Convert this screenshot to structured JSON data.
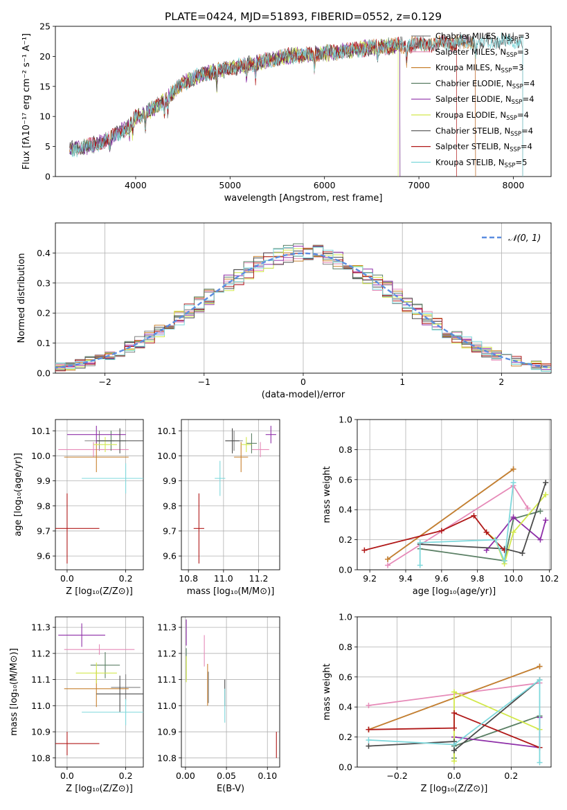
{
  "figure": {
    "title": "PLATE=0424, MJD=51893, FIBERID=0552, z=0.129"
  },
  "colors": {
    "chabrier_miles": "#808080",
    "salpeter_miles": "#e68ab8",
    "kroupa_miles": "#c8802e",
    "chabrier_elodie": "#5a7f64",
    "salpeter_elodie": "#8e2fa8",
    "kroupa_elodie": "#d2e84b",
    "chabrier_stelib": "#4a4a4a",
    "salpeter_stelib": "#b01818",
    "kroupa_stelib": "#7ed8dc",
    "normal": "#5b8de0",
    "grid": "#b0b0b0"
  },
  "chart_data": [
    {
      "id": "spectrum",
      "type": "line",
      "xlabel": "wavelength [Angstrom, rest frame]",
      "ylabel": "Flux [fλ10⁻¹⁷ erg cm⁻² s⁻¹ A⁻¹]",
      "xlim": [
        3150,
        8400
      ],
      "ylim": [
        0,
        25
      ],
      "xticks": [
        4000,
        5000,
        6000,
        7000,
        8000
      ],
      "yticks": [
        0,
        5,
        10,
        15,
        20,
        25
      ],
      "grid": false,
      "legend_position": "right",
      "legend": [
        {
          "label": "Chabrier MILES, N",
          "sub": "SSP",
          "suffix": "=3",
          "color_key": "chabrier_miles"
        },
        {
          "label": "Salpeter MILES, N",
          "sub": "SSP",
          "suffix": "=3",
          "color_key": "salpeter_miles"
        },
        {
          "label": "Kroupa MILES, N",
          "sub": "SSP",
          "suffix": "=3",
          "color_key": "kroupa_miles"
        },
        {
          "label": "Chabrier ELODIE, N",
          "sub": "SSP",
          "suffix": "=4",
          "color_key": "chabrier_elodie"
        },
        {
          "label": "Salpeter ELODIE, N",
          "sub": "SSP",
          "suffix": "=4",
          "color_key": "salpeter_elodie"
        },
        {
          "label": "Kroupa ELODIE, N",
          "sub": "SSP",
          "suffix": "=4",
          "color_key": "kroupa_elodie"
        },
        {
          "label": "Chabrier STELIB, N",
          "sub": "SSP",
          "suffix": "=4",
          "color_key": "chabrier_stelib"
        },
        {
          "label": "Salpeter STELIB, N",
          "sub": "SSP",
          "suffix": "=4",
          "color_key": "salpeter_stelib"
        },
        {
          "label": "Kroupa STELIB, N",
          "sub": "SSP",
          "suffix": "=5",
          "color_key": "kroupa_stelib"
        }
      ],
      "continuum": {
        "x": [
          3300,
          3500,
          3700,
          3900,
          4000,
          4100,
          4300,
          4500,
          4700,
          5000,
          5300,
          5600,
          6000,
          6500,
          7000,
          7500,
          8000,
          8100
        ],
        "y": [
          4.5,
          5.0,
          6.0,
          8.0,
          9.8,
          10.5,
          12.5,
          15.5,
          17.0,
          18.0,
          19.0,
          20.0,
          20.5,
          21.5,
          22.0,
          22.3,
          22.6,
          22.6
        ]
      },
      "model_x_range": [
        {
          "key": "chabrier_miles",
          "x": [
            3300,
            7600
          ]
        },
        {
          "key": "salpeter_miles",
          "x": [
            3300,
            7600
          ]
        },
        {
          "key": "kroupa_miles",
          "x": [
            3300,
            7600
          ]
        },
        {
          "key": "chabrier_elodie",
          "x": [
            3300,
            6800
          ]
        },
        {
          "key": "salpeter_elodie",
          "x": [
            3300,
            6800
          ]
        },
        {
          "key": "kroupa_elodie",
          "x": [
            3900,
            6780
          ]
        },
        {
          "key": "chabrier_stelib",
          "x": [
            3300,
            8100
          ]
        },
        {
          "key": "salpeter_stelib",
          "x": [
            3500,
            7400
          ]
        },
        {
          "key": "kroupa_stelib",
          "x": [
            3300,
            8100
          ]
        }
      ]
    },
    {
      "id": "residuals",
      "type": "line",
      "xlabel": "(data-model)/error",
      "ylabel": "Normed distribution",
      "xlim": [
        -2.5,
        2.5
      ],
      "ylim": [
        0,
        0.5
      ],
      "xticks": [
        -2,
        -1,
        0,
        1,
        2
      ],
      "yticks": [
        0.0,
        0.1,
        0.2,
        0.3,
        0.4
      ],
      "grid": true,
      "legend_position": "top-right",
      "legend": [
        {
          "label": "𝒩(0, 1)",
          "color_key": "normal"
        }
      ],
      "bin_width": 0.1
    },
    {
      "id": "age_vs_Z",
      "type": "scatter",
      "xlabel": "Z [log₁₀(Z/Z⊙)]",
      "ylabel": "age  [log₁₀(age/yr)]",
      "xlim": [
        -0.04,
        0.26
      ],
      "ylim": [
        9.545,
        10.145
      ],
      "xticks": [
        0.0,
        0.2
      ],
      "yticks": [
        9.6,
        9.7,
        9.8,
        9.9,
        10.0,
        10.1
      ],
      "grid": true,
      "points": [
        {
          "key": "chabrier_miles",
          "x": 0.11,
          "y": 10.06,
          "xerr": 0.05,
          "yerr": 0.04
        },
        {
          "key": "salpeter_miles",
          "x": 0.09,
          "y": 10.025,
          "xerr": 0.12,
          "yerr": 0.03
        },
        {
          "key": "kroupa_miles",
          "x": 0.1,
          "y": 9.995,
          "xerr": 0.11,
          "yerr": 0.06
        },
        {
          "key": "chabrier_elodie",
          "x": 0.15,
          "y": 10.06,
          "xerr": 0.05,
          "yerr": 0.04
        },
        {
          "key": "salpeter_elodie",
          "x": 0.1,
          "y": 10.085,
          "xerr": 0.1,
          "yerr": 0.035
        },
        {
          "key": "kroupa_elodie",
          "x": 0.13,
          "y": 10.045,
          "xerr": 0.04,
          "yerr": 0.03
        },
        {
          "key": "chabrier_stelib",
          "x": 0.18,
          "y": 10.06,
          "xerr": 0.08,
          "yerr": 0.05
        },
        {
          "key": "salpeter_stelib",
          "x": 0.0,
          "y": 9.71,
          "xerr": 0.11,
          "yerr": 0.14
        },
        {
          "key": "kroupa_stelib",
          "x": 0.2,
          "y": 9.91,
          "xerr": 0.15,
          "yerr": 0.06
        }
      ]
    },
    {
      "id": "age_vs_mass",
      "type": "scatter",
      "xlabel": "mass [log₁₀(M/M⊙)]",
      "ylabel": "",
      "xlim": [
        10.76,
        11.32
      ],
      "ylim": [
        9.545,
        10.145
      ],
      "xticks": [
        10.8,
        11.0,
        11.2
      ],
      "yticks": [
        9.6,
        9.7,
        9.8,
        9.9,
        10.0,
        10.1
      ],
      "grid": true,
      "points": [
        {
          "key": "chabrier_miles",
          "x": 11.06,
          "y": 10.06,
          "xerr": 0.05,
          "yerr": 0.04
        },
        {
          "key": "salpeter_miles",
          "x": 11.21,
          "y": 10.025,
          "xerr": 0.05,
          "yerr": 0.03
        },
        {
          "key": "kroupa_miles",
          "x": 11.1,
          "y": 9.995,
          "xerr": 0.04,
          "yerr": 0.06
        },
        {
          "key": "chabrier_elodie",
          "x": 11.16,
          "y": 10.05,
          "xerr": 0.03,
          "yerr": 0.04
        },
        {
          "key": "salpeter_elodie",
          "x": 11.27,
          "y": 10.085,
          "xerr": 0.03,
          "yerr": 0.035
        },
        {
          "key": "kroupa_elodie",
          "x": 11.13,
          "y": 10.045,
          "xerr": 0.03,
          "yerr": 0.03
        },
        {
          "key": "chabrier_stelib",
          "x": 11.05,
          "y": 10.06,
          "xerr": 0.04,
          "yerr": 0.05
        },
        {
          "key": "salpeter_stelib",
          "x": 10.86,
          "y": 9.71,
          "xerr": 0.03,
          "yerr": 0.14
        },
        {
          "key": "kroupa_stelib",
          "x": 10.98,
          "y": 9.91,
          "xerr": 0.03,
          "yerr": 0.07
        }
      ]
    },
    {
      "id": "mass_weight_vs_age",
      "type": "line",
      "xlabel": "age  [log₁₀(age/yr)]",
      "ylabel": "mass weight",
      "xlim": [
        9.13,
        10.21
      ],
      "ylim": [
        0,
        1
      ],
      "xticks": [
        9.2,
        9.4,
        9.6,
        9.8,
        10.0,
        10.2
      ],
      "yticks": [
        0.0,
        0.2,
        0.4,
        0.6,
        0.8,
        1.0
      ],
      "grid": true,
      "series": [
        {
          "key": "chabrier_miles",
          "x": [
            9.3,
            10.0
          ],
          "y": [
            0.07,
            0.67
          ]
        },
        {
          "key": "salpeter_miles",
          "x": [
            9.3,
            10.0,
            10.08
          ],
          "y": [
            0.03,
            0.56,
            0.41
          ]
        },
        {
          "key": "kroupa_miles",
          "x": [
            9.3,
            10.0
          ],
          "y": [
            0.07,
            0.67
          ]
        },
        {
          "key": "chabrier_elodie",
          "x": [
            9.48,
            9.95,
            10.0,
            10.15
          ],
          "y": [
            0.14,
            0.06,
            0.34,
            0.39
          ]
        },
        {
          "key": "salpeter_elodie",
          "x": [
            9.85,
            9.9,
            10.0,
            10.15,
            10.18
          ],
          "y": [
            0.13,
            0.2,
            0.35,
            0.2,
            0.33
          ]
        },
        {
          "key": "kroupa_elodie",
          "x": [
            9.85,
            9.9,
            9.95,
            10.0,
            10.18
          ],
          "y": [
            0.25,
            0.2,
            0.04,
            0.25,
            0.5
          ]
        },
        {
          "key": "chabrier_stelib",
          "x": [
            9.48,
            9.95,
            10.05,
            10.18
          ],
          "y": [
            0.17,
            0.14,
            0.11,
            0.58
          ]
        },
        {
          "key": "salpeter_stelib",
          "x": [
            9.17,
            9.6,
            9.78,
            9.85,
            9.95
          ],
          "y": [
            0.13,
            0.26,
            0.36,
            0.25,
            0.13
          ]
        },
        {
          "key": "kroupa_stelib",
          "x": [
            9.48,
            9.48,
            9.9,
            9.95,
            10.0
          ],
          "y": [
            0.03,
            0.18,
            0.2,
            0.06,
            0.58
          ]
        }
      ]
    },
    {
      "id": "mass_vs_Z",
      "type": "scatter",
      "xlabel": "Z [log₁₀(Z/Z⊙)]",
      "ylabel": "mass [log₁₀(M/M⊙)]",
      "xlim": [
        -0.04,
        0.26
      ],
      "ylim": [
        10.765,
        11.34
      ],
      "xticks": [
        0.0,
        0.2
      ],
      "yticks": [
        10.8,
        10.9,
        11.0,
        11.1,
        11.2,
        11.3
      ],
      "grid": true,
      "points": [
        {
          "key": "chabrier_miles",
          "x": 0.2,
          "y": 11.07,
          "xerr": 0.05,
          "yerr": 0.05
        },
        {
          "key": "salpeter_miles",
          "x": 0.11,
          "y": 11.215,
          "xerr": 0.12,
          "yerr": 0.02
        },
        {
          "key": "kroupa_miles",
          "x": 0.1,
          "y": 11.065,
          "xerr": 0.11,
          "yerr": 0.07
        },
        {
          "key": "chabrier_elodie",
          "x": 0.13,
          "y": 11.155,
          "xerr": 0.05,
          "yerr": 0.05
        },
        {
          "key": "salpeter_elodie",
          "x": 0.05,
          "y": 11.27,
          "xerr": 0.08,
          "yerr": 0.045
        },
        {
          "key": "kroupa_elodie",
          "x": 0.1,
          "y": 11.125,
          "xerr": 0.07,
          "yerr": 0.04
        },
        {
          "key": "chabrier_stelib",
          "x": 0.18,
          "y": 11.045,
          "xerr": 0.08,
          "yerr": 0.07
        },
        {
          "key": "salpeter_stelib",
          "x": 0.0,
          "y": 10.855,
          "xerr": 0.11,
          "yerr": 0.045
        },
        {
          "key": "kroupa_stelib",
          "x": 0.2,
          "y": 10.975,
          "xerr": 0.15,
          "yerr": 0.05
        }
      ]
    },
    {
      "id": "mass_vs_ebv",
      "type": "scatter",
      "xlabel": "E(B-V)",
      "ylabel": "",
      "xlim": [
        -0.005,
        0.115
      ],
      "ylim": [
        10.765,
        11.34
      ],
      "xticks": [
        0.0,
        0.05,
        0.1
      ],
      "yticks": [
        10.8,
        10.9,
        11.0,
        11.1,
        11.2,
        11.3
      ],
      "grid": true,
      "points": [
        {
          "key": "chabrier_miles",
          "x": 0.028,
          "y": 11.07,
          "xerr": 0,
          "yerr": 0.06
        },
        {
          "key": "salpeter_miles",
          "x": 0.023,
          "y": 11.21,
          "xerr": 0,
          "yerr": 0.06
        },
        {
          "key": "kroupa_miles",
          "x": 0.027,
          "y": 11.08,
          "xerr": 0,
          "yerr": 0.08
        },
        {
          "key": "chabrier_elodie",
          "x": 0.001,
          "y": 11.16,
          "xerr": 0,
          "yerr": 0.06
        },
        {
          "key": "salpeter_elodie",
          "x": 0.001,
          "y": 11.28,
          "xerr": 0,
          "yerr": 0.05
        },
        {
          "key": "kroupa_elodie",
          "x": 0.001,
          "y": 11.14,
          "xerr": 0,
          "yerr": 0.05
        },
        {
          "key": "chabrier_stelib",
          "x": 0.048,
          "y": 11.05,
          "xerr": 0,
          "yerr": 0.05
        },
        {
          "key": "salpeter_stelib",
          "x": 0.111,
          "y": 10.85,
          "xerr": 0,
          "yerr": 0.05
        },
        {
          "key": "kroupa_stelib",
          "x": 0.048,
          "y": 11.0,
          "xerr": 0,
          "yerr": 0.065
        }
      ]
    },
    {
      "id": "mass_weight_vs_Z",
      "type": "line",
      "xlabel": "Z [log₁₀(Z/Z⊙)]",
      "ylabel": "mass weight",
      "xlim": [
        -0.34,
        0.34
      ],
      "ylim": [
        0,
        1
      ],
      "xticks": [
        -0.2,
        0.0,
        0.2
      ],
      "yticks": [
        0.0,
        0.2,
        0.4,
        0.6,
        0.8,
        1.0
      ],
      "grid": true,
      "series": [
        {
          "key": "chabrier_miles",
          "x": [
            -0.3,
            0.3
          ],
          "y": [
            0.25,
            0.67
          ]
        },
        {
          "key": "salpeter_miles",
          "x": [
            -0.3,
            0.3
          ],
          "y": [
            0.41,
            0.56
          ]
        },
        {
          "key": "kroupa_miles",
          "x": [
            -0.3,
            0.3
          ],
          "y": [
            0.25,
            0.67
          ]
        },
        {
          "key": "chabrier_elodie",
          "x": [
            0.0,
            0.0,
            0.3
          ],
          "y": [
            0.06,
            0.14,
            0.34
          ]
        },
        {
          "key": "salpeter_elodie",
          "x": [
            0.0,
            0.0,
            0.3,
            0.3
          ],
          "y": [
            0.2,
            0.2,
            0.13,
            0.33
          ]
        },
        {
          "key": "kroupa_elodie",
          "x": [
            0.0,
            0.0,
            0.3
          ],
          "y": [
            0.04,
            0.5,
            0.25
          ]
        },
        {
          "key": "chabrier_stelib",
          "x": [
            -0.3,
            0.0,
            0.0,
            0.3
          ],
          "y": [
            0.14,
            0.17,
            0.11,
            0.58
          ]
        },
        {
          "key": "salpeter_stelib",
          "x": [
            -0.3,
            0.0,
            0.0,
            0.3
          ],
          "y": [
            0.25,
            0.26,
            0.36,
            0.13
          ]
        },
        {
          "key": "kroupa_stelib",
          "x": [
            -0.3,
            0.0,
            0.3,
            0.3
          ],
          "y": [
            0.18,
            0.15,
            0.58,
            0.03
          ]
        }
      ]
    }
  ]
}
